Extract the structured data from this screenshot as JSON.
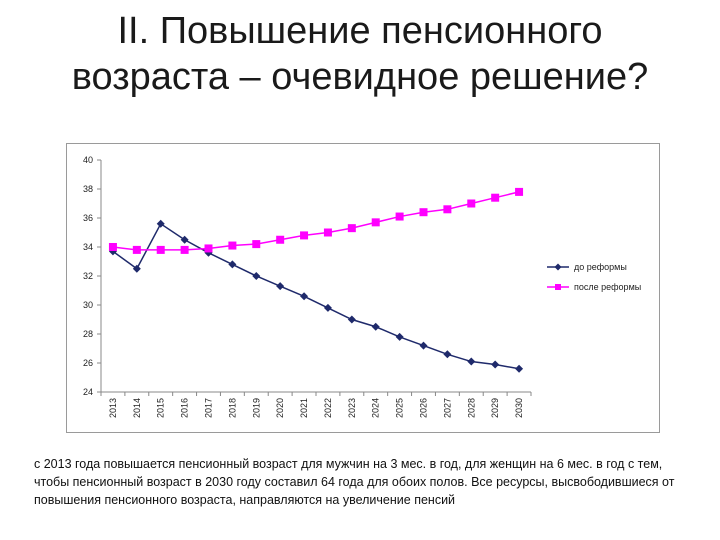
{
  "slide": {
    "title_line1": "II. Повышение пенсионного",
    "title_line2": "возраста – очевидное решение?",
    "caption": "с 2013 года повышается пенсионный возраст для мужчин на 3 мес. в год, для женщин на 6 мес. в год с тем, чтобы пенсионный возраст в 2030 году составил 64 года для обоих полов. Все ресурсы, высвободившиеся от повышения пенсионного возраста, направляются на увеличение пенсий"
  },
  "chart_data": {
    "type": "line",
    "title": "",
    "xlabel": "",
    "ylabel": "",
    "categories": [
      "2013",
      "2014",
      "2015",
      "2016",
      "2017",
      "2018",
      "2019",
      "2020",
      "2021",
      "2022",
      "2023",
      "2024",
      "2025",
      "2026",
      "2027",
      "2028",
      "2029",
      "2030"
    ],
    "y_ticks": [
      24,
      26,
      28,
      30,
      32,
      34,
      36,
      38,
      40
    ],
    "ylim": [
      24,
      40
    ],
    "grid": false,
    "legend_position": "right",
    "series": [
      {
        "name": "до реформы",
        "color": "#1f2a6b",
        "marker": "diamond",
        "values": [
          33.7,
          32.5,
          35.6,
          34.5,
          33.6,
          32.8,
          32.0,
          31.3,
          30.6,
          29.8,
          29.0,
          28.5,
          27.8,
          27.2,
          26.6,
          26.1,
          25.9,
          25.6
        ]
      },
      {
        "name": "после реформы",
        "color": "#ff00ff",
        "marker": "square",
        "values": [
          34.0,
          33.8,
          33.8,
          33.8,
          33.9,
          34.1,
          34.2,
          34.5,
          34.8,
          35.0,
          35.3,
          35.7,
          36.1,
          36.4,
          36.6,
          37.0,
          37.4,
          37.8
        ]
      }
    ]
  }
}
